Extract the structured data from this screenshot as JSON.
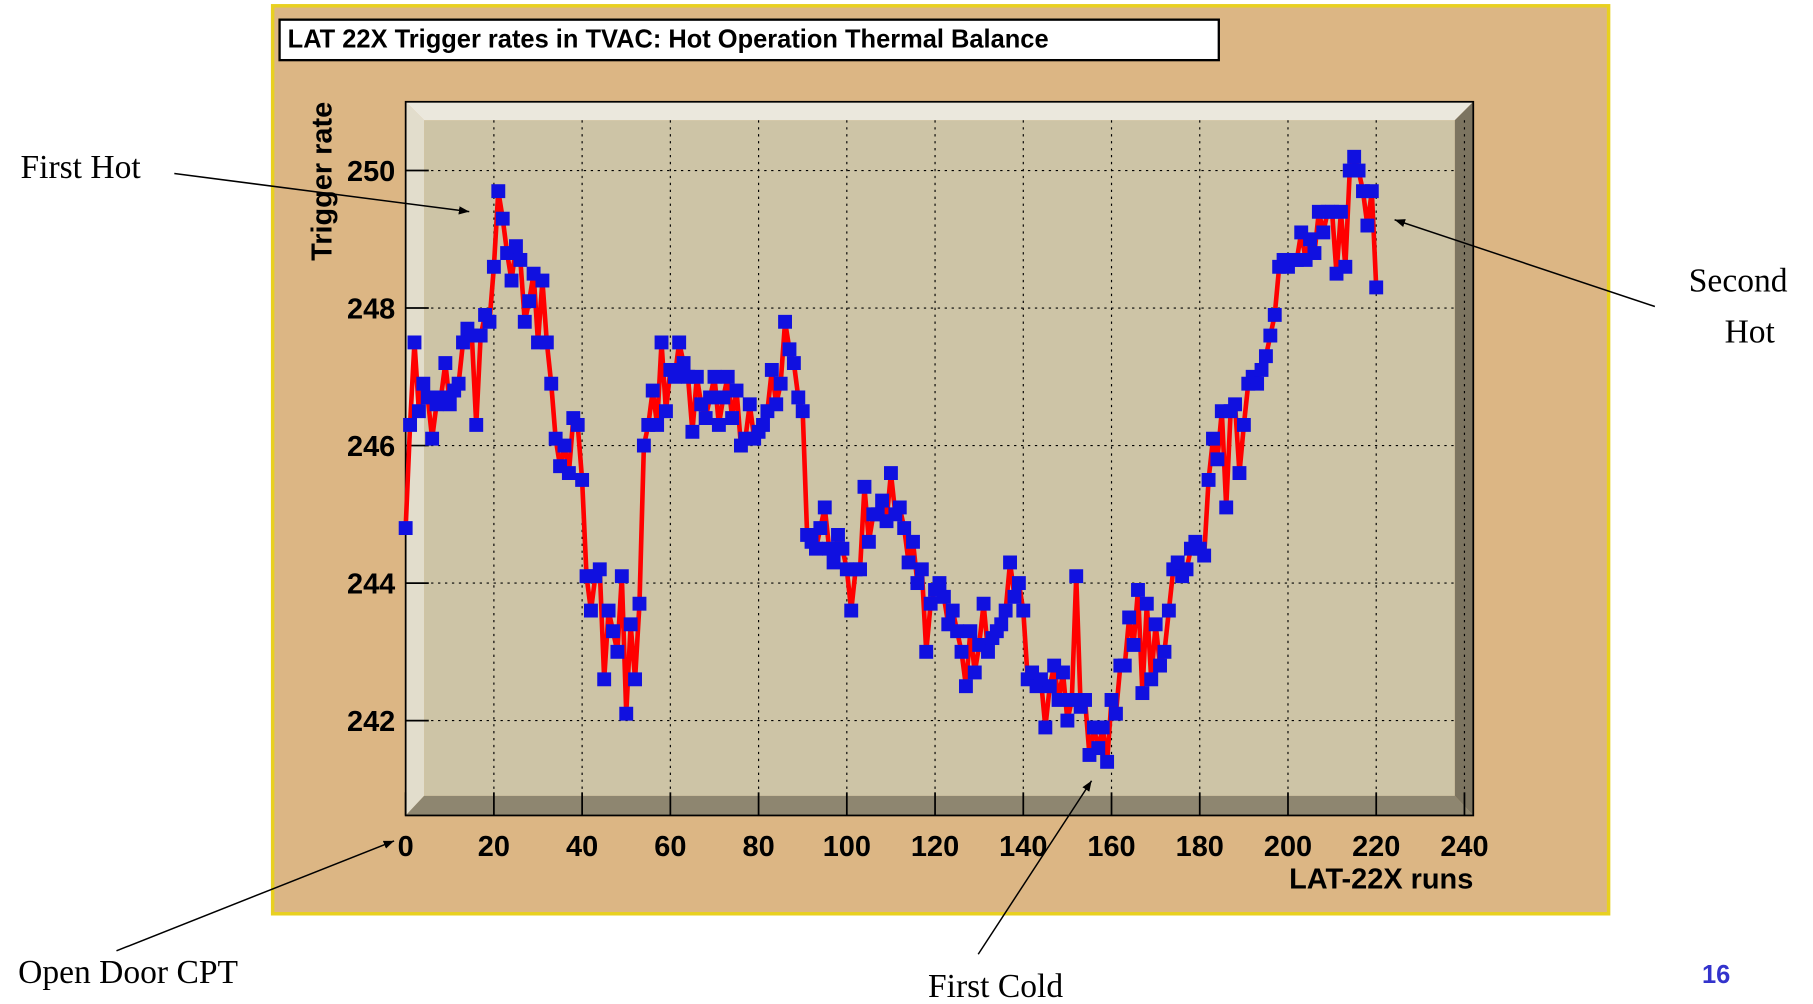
{
  "chart_data": {
    "type": "scatter",
    "title": "LAT 22X Trigger rates in TVAC: Hot Operation Thermal Balance",
    "x_label": "LAT-22X runs",
    "y_label": "Trigger rate",
    "xlim": [
      0,
      242
    ],
    "ylim": [
      240.62,
      251.0
    ],
    "xticks": [
      0,
      20,
      40,
      60,
      80,
      100,
      120,
      140,
      160,
      180,
      200,
      220,
      240
    ],
    "yticks": [
      242,
      244,
      246,
      248,
      250
    ],
    "grid": true,
    "series": [
      {
        "marker_color": "#1010e0",
        "line_color": "#ff0000",
        "x": [
          0,
          1,
          2,
          3,
          4,
          5,
          6,
          7,
          8,
          9,
          10,
          11,
          12,
          13,
          14,
          15,
          16,
          17,
          18,
          19,
          20,
          21,
          22,
          23,
          24,
          25,
          26,
          27,
          28,
          29,
          30,
          31,
          32,
          33,
          34,
          35,
          36,
          37,
          38,
          39,
          40,
          41,
          42,
          43,
          44,
          45,
          46,
          47,
          48,
          49,
          50,
          51,
          52,
          53,
          54,
          55,
          56,
          57,
          58,
          59,
          60,
          61,
          62,
          63,
          64,
          65,
          66,
          67,
          68,
          69,
          70,
          71,
          72,
          73,
          74,
          75,
          76,
          77,
          78,
          79,
          80,
          81,
          82,
          83,
          84,
          85,
          86,
          87,
          88,
          89,
          90,
          91,
          92,
          93,
          94,
          95,
          96,
          97,
          98,
          99,
          100,
          101,
          102,
          103,
          104,
          105,
          106,
          107,
          108,
          109,
          110,
          111,
          112,
          113,
          114,
          115,
          116,
          117,
          118,
          119,
          120,
          121,
          122,
          123,
          124,
          125,
          126,
          127,
          128,
          129,
          130,
          131,
          132,
          133,
          134,
          135,
          136,
          137,
          138,
          139,
          140,
          141,
          142,
          143,
          144,
          145,
          146,
          147,
          148,
          149,
          150,
          151,
          152,
          153,
          154,
          155,
          156,
          157,
          158,
          159,
          160,
          161,
          162,
          163,
          164,
          165,
          166,
          167,
          168,
          169,
          170,
          171,
          172,
          173,
          174,
          175,
          176,
          177,
          178,
          179,
          180,
          181,
          182,
          183,
          184,
          185,
          186,
          187,
          188,
          189,
          190,
          191,
          192,
          193,
          194,
          195,
          196,
          197,
          198,
          199,
          200,
          201,
          202,
          203,
          204,
          205,
          206,
          207,
          208,
          209,
          210,
          211,
          212,
          213,
          214,
          215,
          216,
          217,
          218,
          219,
          220
        ],
        "values": [
          244.8,
          246.3,
          247.5,
          246.5,
          246.9,
          246.7,
          246.1,
          246.6,
          246.7,
          247.2,
          246.6,
          246.8,
          246.9,
          247.5,
          247.7,
          247.6,
          246.3,
          247.6,
          247.9,
          247.8,
          248.6,
          249.7,
          249.3,
          248.8,
          248.4,
          248.9,
          248.7,
          247.8,
          248.1,
          248.5,
          247.5,
          248.4,
          247.5,
          246.9,
          246.1,
          245.7,
          246.0,
          245.6,
          246.4,
          246.3,
          245.5,
          244.1,
          243.6,
          244.1,
          244.2,
          242.6,
          243.6,
          243.3,
          243.0,
          244.1,
          242.1,
          243.4,
          242.6,
          243.7,
          246.0,
          246.3,
          246.8,
          246.3,
          247.5,
          246.5,
          247.1,
          247.0,
          247.5,
          247.2,
          247.0,
          246.2,
          247.0,
          246.6,
          246.4,
          246.7,
          247.0,
          246.3,
          246.7,
          247.0,
          246.4,
          246.8,
          246.0,
          246.1,
          246.6,
          246.1,
          246.2,
          246.3,
          246.5,
          247.1,
          246.6,
          246.9,
          247.8,
          247.4,
          247.2,
          246.7,
          246.5,
          244.7,
          244.6,
          244.5,
          244.8,
          245.1,
          244.5,
          244.3,
          244.7,
          244.5,
          244.2,
          243.6,
          244.2,
          244.2,
          245.4,
          244.6,
          245.0,
          245.0,
          245.2,
          244.9,
          245.6,
          245.0,
          245.1,
          244.8,
          244.3,
          244.6,
          244.0,
          244.2,
          243.0,
          243.7,
          243.9,
          244.0,
          243.8,
          243.4,
          243.6,
          243.3,
          243.0,
          242.5,
          243.3,
          242.7,
          243.1,
          243.7,
          243.0,
          243.2,
          243.3,
          243.4,
          243.6,
          244.3,
          243.8,
          244.0,
          243.6,
          242.6,
          242.7,
          242.5,
          242.6,
          241.9,
          242.5,
          242.8,
          242.3,
          242.7,
          242.0,
          242.3,
          244.1,
          242.2,
          242.3,
          241.5,
          241.9,
          241.6,
          241.9,
          241.4,
          242.3,
          242.1,
          242.8,
          242.8,
          243.5,
          243.1,
          243.9,
          242.4,
          243.7,
          242.6,
          243.4,
          242.8,
          243.0,
          243.6,
          244.2,
          244.3,
          244.1,
          244.2,
          244.5,
          244.6,
          244.5,
          244.4,
          245.5,
          246.1,
          245.8,
          246.5,
          245.1,
          246.5,
          246.6,
          245.6,
          246.3,
          246.9,
          247.0,
          246.9,
          247.1,
          247.3,
          247.6,
          247.9,
          248.6,
          248.7,
          248.6,
          248.7,
          248.7,
          249.1,
          248.7,
          249.0,
          248.8,
          249.4,
          249.1,
          249.4,
          249.4,
          248.5,
          249.4,
          248.6,
          250.0,
          250.2,
          250.0,
          249.7,
          249.2,
          249.7,
          248.3
        ]
      }
    ],
    "annotations": [
      {
        "lines": [
          "First Hot"
        ]
      },
      {
        "lines": [
          "Second",
          "Hot"
        ]
      },
      {
        "lines": [
          "Open Door CPT"
        ]
      },
      {
        "lines": [
          "First Cold"
        ]
      }
    ],
    "page_number": "16"
  }
}
